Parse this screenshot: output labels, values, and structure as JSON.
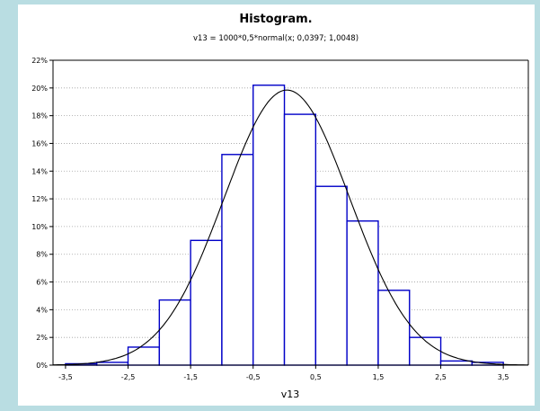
{
  "chart_data": {
    "type": "bar",
    "title": "Histogram.",
    "subtitle": "v13 = 1000*0,5*normal(x; 0,0397; 1,0048)",
    "xlabel": "v13",
    "ylabel": "",
    "xlim": [
      -3.7,
      3.9
    ],
    "ylim": [
      0,
      22
    ],
    "x_ticks": [
      "-3,5",
      "-2,5",
      "-1,5",
      "-0,5",
      "0,5",
      "1,5",
      "2,5",
      "3,5"
    ],
    "x_tick_values": [
      -3.5,
      -2.5,
      -1.5,
      -0.5,
      0.5,
      1.5,
      2.5,
      3.5
    ],
    "y_ticks": [
      "0%",
      "2%",
      "4%",
      "6%",
      "8%",
      "10%",
      "12%",
      "14%",
      "16%",
      "18%",
      "20%",
      "22%"
    ],
    "y_tick_values": [
      0,
      2,
      4,
      6,
      8,
      10,
      12,
      14,
      16,
      18,
      20,
      22
    ],
    "grid": true,
    "bins": [
      {
        "from": -3.5,
        "to": -3.0,
        "value": 0.1
      },
      {
        "from": -3.0,
        "to": -2.5,
        "value": 0.2
      },
      {
        "from": -2.5,
        "to": -2.0,
        "value": 1.3
      },
      {
        "from": -2.0,
        "to": -1.5,
        "value": 4.7
      },
      {
        "from": -1.5,
        "to": -1.0,
        "value": 9.0
      },
      {
        "from": -1.0,
        "to": -0.5,
        "value": 15.2
      },
      {
        "from": -0.5,
        "to": 0.0,
        "value": 20.2
      },
      {
        "from": 0.0,
        "to": 0.5,
        "value": 18.1
      },
      {
        "from": 0.5,
        "to": 1.0,
        "value": 12.9
      },
      {
        "from": 1.0,
        "to": 1.5,
        "value": 10.4
      },
      {
        "from": 1.5,
        "to": 2.0,
        "value": 5.4
      },
      {
        "from": 2.0,
        "to": 2.5,
        "value": 2.0
      },
      {
        "from": 2.5,
        "to": 3.0,
        "value": 0.3
      },
      {
        "from": 3.0,
        "to": 3.5,
        "value": 0.2
      }
    ],
    "fit_curve": {
      "distribution": "normal",
      "mean": 0.0397,
      "sd": 1.0048,
      "scale": 50
    },
    "colors": {
      "bar_edge": "#0000c8",
      "bar_fill": "#ffffff",
      "curve": "#000000",
      "background": "#b9dde2"
    }
  }
}
